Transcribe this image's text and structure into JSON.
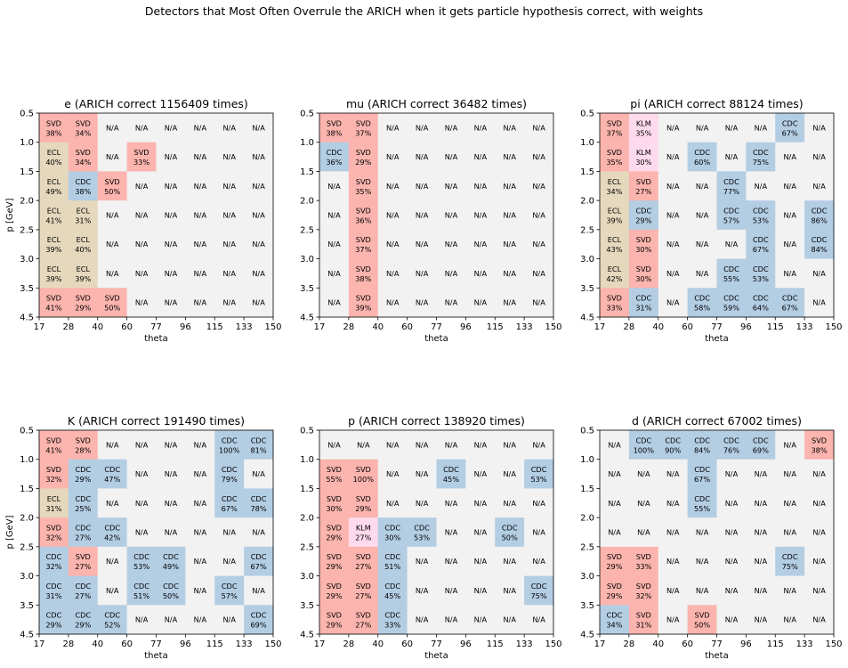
{
  "figure_title": "Detectors that Most Often Overrule the ARICH when it gets particle hypothesis correct, with weights",
  "colors": {
    "SVD": "#fbb4ae",
    "CDC": "#b3cde3",
    "ECL": "#e5d8bd",
    "KLM": "#fddaec",
    "N/A": "#f2f2f2"
  },
  "chart_data": [
    {
      "type": "heatmap",
      "title": "e (ARICH correct 1156409 times)",
      "xlabel": "theta",
      "ylabel": "p [GeV]",
      "x_ticks": [
        "17",
        "28",
        "40",
        "60",
        "77",
        "96",
        "115",
        "133",
        "150"
      ],
      "y_ticks": [
        "0.5",
        "1.0",
        "1.5",
        "2.0",
        "2.5",
        "3.0",
        "3.5",
        "4.5"
      ],
      "cells": [
        [
          "SVD 38%",
          "SVD 34%",
          "N/A",
          "N/A",
          "N/A",
          "N/A",
          "N/A",
          "N/A"
        ],
        [
          "ECL 40%",
          "SVD 34%",
          "N/A",
          "SVD 33%",
          "N/A",
          "N/A",
          "N/A",
          "N/A"
        ],
        [
          "ECL 49%",
          "CDC 38%",
          "SVD 50%",
          "N/A",
          "N/A",
          "N/A",
          "N/A",
          "N/A"
        ],
        [
          "ECL 41%",
          "ECL 31%",
          "N/A",
          "N/A",
          "N/A",
          "N/A",
          "N/A",
          "N/A"
        ],
        [
          "ECL 39%",
          "ECL 40%",
          "N/A",
          "N/A",
          "N/A",
          "N/A",
          "N/A",
          "N/A"
        ],
        [
          "ECL 39%",
          "ECL 39%",
          "N/A",
          "N/A",
          "N/A",
          "N/A",
          "N/A",
          "N/A"
        ],
        [
          "SVD 41%",
          "SVD 29%",
          "SVD 50%",
          "N/A",
          "N/A",
          "N/A",
          "N/A",
          "N/A"
        ]
      ]
    },
    {
      "type": "heatmap",
      "title": "mu (ARICH correct 36482 times)",
      "xlabel": "theta",
      "ylabel": "",
      "x_ticks": [
        "17",
        "28",
        "40",
        "60",
        "77",
        "96",
        "115",
        "133",
        "150"
      ],
      "y_ticks": [
        "0.5",
        "1.0",
        "1.5",
        "2.0",
        "2.5",
        "3.0",
        "3.5",
        "4.5"
      ],
      "cells": [
        [
          "SVD 38%",
          "SVD 37%",
          "N/A",
          "N/A",
          "N/A",
          "N/A",
          "N/A",
          "N/A"
        ],
        [
          "CDC 36%",
          "SVD 29%",
          "N/A",
          "N/A",
          "N/A",
          "N/A",
          "N/A",
          "N/A"
        ],
        [
          "N/A",
          "SVD 35%",
          "N/A",
          "N/A",
          "N/A",
          "N/A",
          "N/A",
          "N/A"
        ],
        [
          "N/A",
          "SVD 36%",
          "N/A",
          "N/A",
          "N/A",
          "N/A",
          "N/A",
          "N/A"
        ],
        [
          "N/A",
          "SVD 37%",
          "N/A",
          "N/A",
          "N/A",
          "N/A",
          "N/A",
          "N/A"
        ],
        [
          "N/A",
          "SVD 38%",
          "N/A",
          "N/A",
          "N/A",
          "N/A",
          "N/A",
          "N/A"
        ],
        [
          "N/A",
          "SVD 39%",
          "N/A",
          "N/A",
          "N/A",
          "N/A",
          "N/A",
          "N/A"
        ]
      ]
    },
    {
      "type": "heatmap",
      "title": "pi (ARICH correct 88124 times)",
      "xlabel": "theta",
      "ylabel": "",
      "x_ticks": [
        "17",
        "28",
        "40",
        "60",
        "77",
        "96",
        "115",
        "133",
        "150"
      ],
      "y_ticks": [
        "0.5",
        "1.0",
        "1.5",
        "2.0",
        "2.5",
        "3.0",
        "3.5",
        "4.5"
      ],
      "cells": [
        [
          "SVD 37%",
          "KLM 35%",
          "N/A",
          "N/A",
          "N/A",
          "N/A",
          "CDC 67%",
          "N/A"
        ],
        [
          "SVD 35%",
          "KLM 30%",
          "N/A",
          "CDC 60%",
          "N/A",
          "CDC 75%",
          "N/A",
          "N/A"
        ],
        [
          "ECL 34%",
          "SVD 27%",
          "N/A",
          "N/A",
          "CDC 77%",
          "N/A",
          "N/A",
          "N/A"
        ],
        [
          "ECL 39%",
          "CDC 29%",
          "N/A",
          "N/A",
          "CDC 57%",
          "CDC 53%",
          "N/A",
          "CDC 86%"
        ],
        [
          "ECL 43%",
          "SVD 30%",
          "N/A",
          "N/A",
          "N/A",
          "CDC 67%",
          "N/A",
          "CDC 84%"
        ],
        [
          "ECL 42%",
          "SVD 30%",
          "N/A",
          "N/A",
          "CDC 55%",
          "CDC 53%",
          "N/A",
          "N/A"
        ],
        [
          "SVD 33%",
          "CDC 31%",
          "N/A",
          "CDC 58%",
          "CDC 59%",
          "CDC 64%",
          "CDC 67%",
          "N/A"
        ]
      ]
    },
    {
      "type": "heatmap",
      "title": "K (ARICH correct 191490 times)",
      "xlabel": "theta",
      "ylabel": "p [GeV]",
      "x_ticks": [
        "17",
        "28",
        "40",
        "60",
        "77",
        "96",
        "115",
        "133",
        "150"
      ],
      "y_ticks": [
        "0.5",
        "1.0",
        "1.5",
        "2.0",
        "2.5",
        "3.0",
        "3.5",
        "4.5"
      ],
      "cells": [
        [
          "SVD 41%",
          "SVD 28%",
          "N/A",
          "N/A",
          "N/A",
          "N/A",
          "CDC 100%",
          "CDC 81%"
        ],
        [
          "SVD 32%",
          "CDC 29%",
          "CDC 47%",
          "N/A",
          "N/A",
          "N/A",
          "CDC 79%",
          "N/A"
        ],
        [
          "ECL 31%",
          "CDC 25%",
          "N/A",
          "N/A",
          "N/A",
          "N/A",
          "CDC 67%",
          "CDC 78%"
        ],
        [
          "SVD 32%",
          "CDC 27%",
          "CDC 42%",
          "N/A",
          "N/A",
          "N/A",
          "N/A",
          "N/A"
        ],
        [
          "CDC 32%",
          "SVD 27%",
          "N/A",
          "CDC 53%",
          "CDC 49%",
          "N/A",
          "N/A",
          "CDC 67%"
        ],
        [
          "CDC 31%",
          "CDC 27%",
          "N/A",
          "CDC 51%",
          "CDC 50%",
          "N/A",
          "CDC 57%",
          "N/A"
        ],
        [
          "CDC 29%",
          "CDC 29%",
          "CDC 52%",
          "N/A",
          "N/A",
          "N/A",
          "N/A",
          "CDC 69%"
        ]
      ]
    },
    {
      "type": "heatmap",
      "title": "p (ARICH correct 138920 times)",
      "xlabel": "theta",
      "ylabel": "",
      "x_ticks": [
        "17",
        "28",
        "40",
        "60",
        "77",
        "96",
        "115",
        "133",
        "150"
      ],
      "y_ticks": [
        "0.5",
        "1.0",
        "1.5",
        "2.0",
        "2.5",
        "3.0",
        "3.5",
        "4.5"
      ],
      "cells": [
        [
          "N/A",
          "N/A",
          "N/A",
          "N/A",
          "N/A",
          "N/A",
          "N/A",
          "N/A"
        ],
        [
          "SVD 55%",
          "SVD 100%",
          "N/A",
          "N/A",
          "CDC 45%",
          "N/A",
          "N/A",
          "CDC 53%"
        ],
        [
          "SVD 30%",
          "SVD 29%",
          "N/A",
          "N/A",
          "N/A",
          "N/A",
          "N/A",
          "N/A"
        ],
        [
          "SVD 29%",
          "KLM 27%",
          "CDC 30%",
          "CDC 53%",
          "N/A",
          "N/A",
          "CDC 50%",
          "N/A"
        ],
        [
          "SVD 29%",
          "SVD 27%",
          "CDC 51%",
          "N/A",
          "N/A",
          "N/A",
          "N/A",
          "N/A"
        ],
        [
          "SVD 29%",
          "SVD 27%",
          "CDC 45%",
          "N/A",
          "N/A",
          "N/A",
          "N/A",
          "CDC 75%"
        ],
        [
          "SVD 29%",
          "SVD 27%",
          "CDC 33%",
          "N/A",
          "N/A",
          "N/A",
          "N/A",
          "N/A"
        ]
      ]
    },
    {
      "type": "heatmap",
      "title": "d (ARICH correct 67002 times)",
      "xlabel": "theta",
      "ylabel": "",
      "x_ticks": [
        "17",
        "28",
        "40",
        "60",
        "77",
        "96",
        "115",
        "133",
        "150"
      ],
      "y_ticks": [
        "0.5",
        "1.0",
        "1.5",
        "2.0",
        "2.5",
        "3.0",
        "3.5",
        "4.5"
      ],
      "cells": [
        [
          "N/A",
          "CDC 100%",
          "CDC 90%",
          "CDC 84%",
          "CDC 76%",
          "CDC 69%",
          "N/A",
          "SVD 38%"
        ],
        [
          "N/A",
          "N/A",
          "N/A",
          "CDC 67%",
          "N/A",
          "N/A",
          "N/A",
          "N/A"
        ],
        [
          "N/A",
          "N/A",
          "N/A",
          "CDC 55%",
          "N/A",
          "N/A",
          "N/A",
          "N/A"
        ],
        [
          "N/A",
          "N/A",
          "N/A",
          "N/A",
          "N/A",
          "N/A",
          "N/A",
          "N/A"
        ],
        [
          "SVD 29%",
          "SVD 33%",
          "N/A",
          "N/A",
          "N/A",
          "N/A",
          "CDC 75%",
          "N/A"
        ],
        [
          "SVD 29%",
          "SVD 32%",
          "N/A",
          "N/A",
          "N/A",
          "N/A",
          "N/A",
          "N/A"
        ],
        [
          "CDC 34%",
          "SVD 31%",
          "N/A",
          "SVD 50%",
          "N/A",
          "N/A",
          "N/A",
          "N/A"
        ]
      ]
    }
  ]
}
